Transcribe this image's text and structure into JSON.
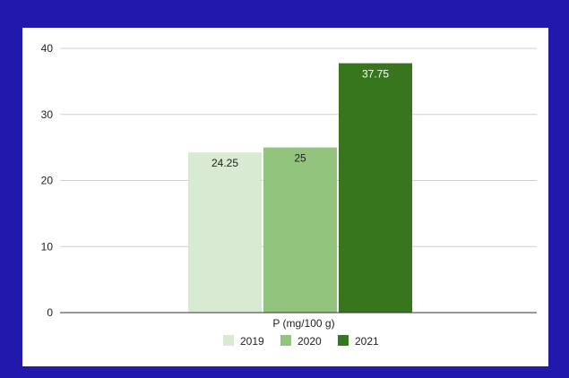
{
  "chart_data": {
    "type": "bar",
    "categories": [
      "P (mg/100 g)"
    ],
    "series": [
      {
        "name": "2019",
        "values": [
          24.25
        ],
        "color": "#d9ead3",
        "label": "24.25",
        "label_color": "#222222"
      },
      {
        "name": "2020",
        "values": [
          25
        ],
        "color": "#93c47d",
        "label": "25",
        "label_color": "#222222"
      },
      {
        "name": "2021",
        "values": [
          37.75
        ],
        "color": "#38761d",
        "label": "37.75",
        "label_color": "#ffffff"
      }
    ],
    "ylim": [
      0,
      40
    ],
    "yticks": [
      0,
      10,
      20,
      30,
      40
    ],
    "grid": true,
    "legend": "bottom"
  }
}
